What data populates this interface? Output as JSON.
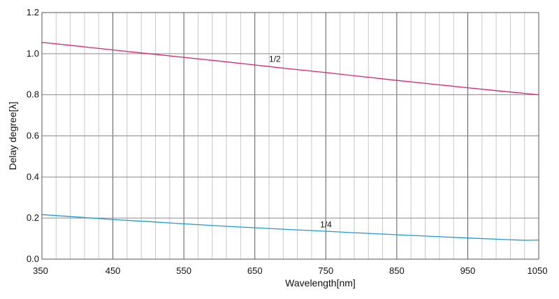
{
  "chart_data": {
    "type": "line",
    "xlabel": "Wavelength[nm]",
    "ylabel": "Delay degree[λ]",
    "xlim": [
      350,
      1050
    ],
    "ylim": [
      0.0,
      1.2
    ],
    "x_ticks": [
      350,
      450,
      550,
      650,
      750,
      850,
      950,
      1050
    ],
    "x_tick_labels": [
      "350",
      "450",
      "550",
      "650",
      "750",
      "850",
      "950",
      "1050"
    ],
    "y_ticks": [
      0.0,
      0.2,
      0.4,
      0.6,
      0.8,
      1.0,
      1.2
    ],
    "y_tick_labels": [
      "0.0",
      "0.2",
      "0.4",
      "0.6",
      "0.8",
      "1.0",
      "1.2"
    ],
    "x_minor_step": 20,
    "grid": true,
    "series": [
      {
        "name": "1/2",
        "color": "#d6237a",
        "label_at": [
          670,
          0.96
        ],
        "x": [
          350,
          400,
          450,
          500,
          550,
          600,
          650,
          700,
          750,
          800,
          850,
          900,
          950,
          1000,
          1050
        ],
        "y": [
          1.055,
          1.037,
          1.018,
          1.0,
          0.982,
          0.964,
          0.945,
          0.926,
          0.908,
          0.889,
          0.87,
          0.852,
          0.834,
          0.817,
          0.8
        ]
      },
      {
        "name": "1/4",
        "color": "#1f9ad6",
        "label_at": [
          742,
          0.155
        ],
        "x": [
          350,
          400,
          450,
          500,
          550,
          600,
          650,
          700,
          750,
          800,
          850,
          900,
          950,
          1000,
          1030,
          1050
        ],
        "y": [
          0.217,
          0.205,
          0.193,
          0.183,
          0.172,
          0.162,
          0.153,
          0.144,
          0.136,
          0.127,
          0.119,
          0.111,
          0.103,
          0.096,
          0.092,
          0.093
        ]
      }
    ]
  }
}
